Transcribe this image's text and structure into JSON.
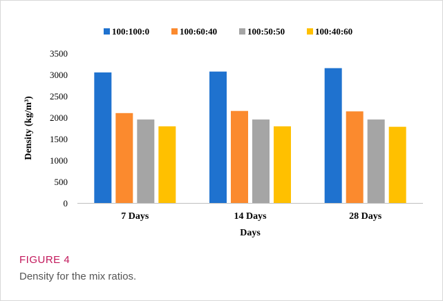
{
  "figure": {
    "label": "FIGURE 4",
    "caption": "Density for the mix ratios."
  },
  "chart_data": {
    "type": "bar",
    "categories": [
      "7 Days",
      "14 Days",
      "28 Days"
    ],
    "series": [
      {
        "name": "100:100:0",
        "color": "#1f72cf",
        "values": [
          3050,
          3070,
          3150
        ]
      },
      {
        "name": "100:60:40",
        "color": "#fb8a2e",
        "values": [
          2100,
          2150,
          2140
        ]
      },
      {
        "name": "100:50:50",
        "color": "#a5a5a5",
        "values": [
          1950,
          1950,
          1950
        ]
      },
      {
        "name": "100:40:60",
        "color": "#ffc000",
        "values": [
          1790,
          1790,
          1780
        ]
      }
    ],
    "xlabel": "Days",
    "ylabel": "Density (kg/m³)",
    "ylim": [
      0,
      3500
    ],
    "yticks": [
      "0",
      "500",
      "1000",
      "1500",
      "2000",
      "2500",
      "3000",
      "3500"
    ],
    "legend_position": "top",
    "grid": false
  }
}
